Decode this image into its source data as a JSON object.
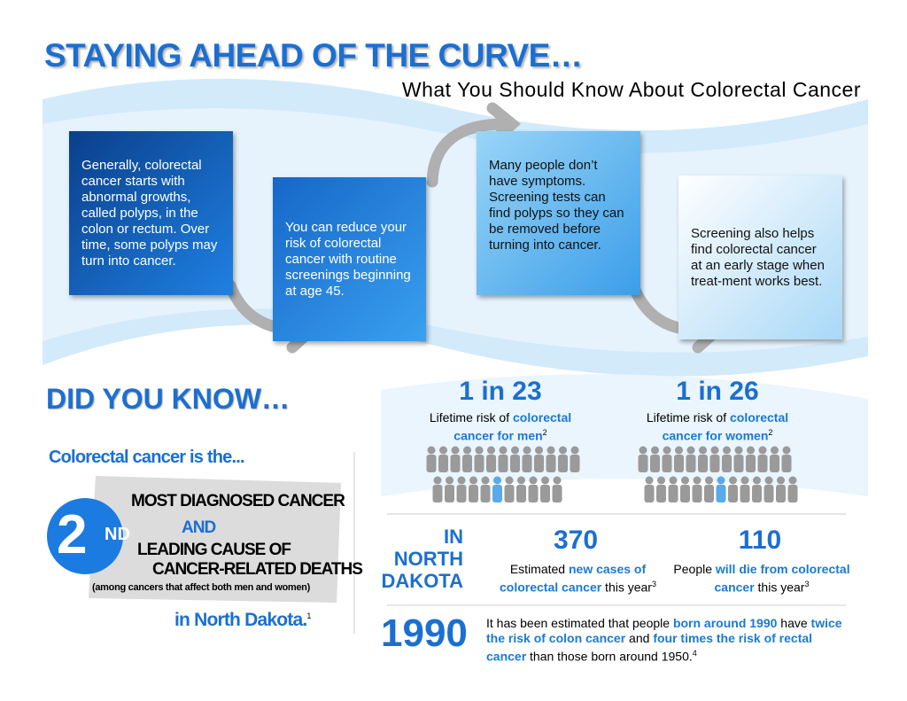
{
  "header": {
    "title": "STAYING AHEAD OF THE CURVE…",
    "subtitle": "What You Should Know About Colorectal Cancer"
  },
  "steps": [
    "Generally, colorectal cancer starts with abnormal growths, called polyps, in the colon or rectum. Over time, some polyps may turn into cancer.",
    "You can reduce your risk of colorectal cancer with routine screenings beginning at age 45.",
    "Many people don’t have symptoms. Screening tests can find polyps so they can be removed before turning into cancer.",
    "Screening also helps find colorectal cancer at an early stage when treat-ment works best."
  ],
  "did_you_know": {
    "title": "DID YOU KNOW…",
    "intro": "Colorectal cancer is the...",
    "rank": "2",
    "rank_suffix": "ND",
    "lines": [
      "MOST DIAGNOSED CANCER",
      "AND",
      "LEADING CAUSE OF",
      "CANCER-RELATED DEATHS"
    ],
    "note": "(among cancers that affect both men and women)",
    "location": "in North Dakota.",
    "footnote": "1"
  },
  "risk": [
    {
      "stat": "1 in 23",
      "text": [
        {
          "text": "Lifetime risk of "
        },
        {
          "text": "colorectal cancer for men",
          "em": true
        }
      ],
      "footnote": "2"
    },
    {
      "stat": "1 in 26",
      "text": [
        {
          "text": "Lifetime risk of "
        },
        {
          "text": "colorectal cancer for women",
          "em": true
        }
      ],
      "footnote": "2"
    }
  ],
  "north_dakota": {
    "label": [
      "IN",
      "NORTH",
      "DAKOTA"
    ],
    "stats": [
      {
        "stat": "370",
        "text": [
          {
            "text": "Estimated "
          },
          {
            "text": "new cases of colorectal cancer",
            "em": true
          },
          {
            "text": " this year"
          }
        ],
        "footnote": "3"
      },
      {
        "stat": "110",
        "text": [
          {
            "text": "People "
          },
          {
            "text": "will die from colorectal cancer",
            "em": true
          },
          {
            "text": " this year"
          }
        ],
        "footnote": "3"
      }
    ]
  },
  "birth_year": {
    "stat": "1990",
    "text": [
      {
        "text": "It has been estimated that people "
      },
      {
        "text": "born around 1990",
        "em": true
      },
      {
        "text": " have "
      },
      {
        "text": "twice the risk of colon cancer",
        "em": true
      },
      {
        "text": " and "
      },
      {
        "text": "four times the risk of rectal cancer",
        "em": true
      },
      {
        "text": " than those born around 1950."
      }
    ],
    "footnote": "4"
  }
}
